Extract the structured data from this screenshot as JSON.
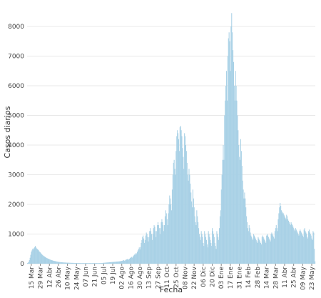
{
  "chart_data": {
    "type": "bar",
    "x_label": "Fecha",
    "y_label": "Casos diarios",
    "color": "#a9d1e6",
    "grid": true,
    "ylim": [
      0,
      8650
    ],
    "yticks": [
      0,
      1000,
      2000,
      3000,
      4000,
      5000,
      6000,
      7000,
      8000
    ],
    "categories": [
      null,
      null,
      null,
      null,
      null,
      null,
      "15 Mar",
      null,
      null,
      null,
      null,
      null,
      null,
      null,
      null,
      null,
      null,
      null,
      null,
      null,
      "29 Mar",
      null,
      null,
      null,
      null,
      null,
      null,
      null,
      null,
      null,
      null,
      null,
      null,
      null,
      "12 Abr",
      null,
      null,
      null,
      null,
      null,
      null,
      null,
      null,
      null,
      null,
      null,
      null,
      null,
      "26 Abr",
      null,
      null,
      null,
      null,
      null,
      null,
      null,
      null,
      null,
      null,
      null,
      null,
      null,
      "10 May",
      null,
      null,
      null,
      null,
      null,
      null,
      null,
      null,
      null,
      null,
      null,
      null,
      null,
      "24 May",
      null,
      null,
      null,
      null,
      null,
      null,
      null,
      null,
      null,
      null,
      null,
      null,
      null,
      "07 Jun",
      null,
      null,
      null,
      null,
      null,
      null,
      null,
      null,
      null,
      null,
      null,
      null,
      null,
      "21 Jun",
      null,
      null,
      null,
      null,
      null,
      null,
      null,
      null,
      null,
      null,
      null,
      null,
      null,
      "05 Jul",
      null,
      null,
      null,
      null,
      null,
      null,
      null,
      null,
      null,
      null,
      null,
      null,
      null,
      "19 Jul",
      null,
      null,
      null,
      null,
      null,
      null,
      null,
      null,
      null,
      null,
      null,
      null,
      null,
      "02 Ago",
      null,
      null,
      null,
      null,
      null,
      null,
      null,
      null,
      null,
      null,
      null,
      null,
      null,
      "16 Ago",
      null,
      null,
      null,
      null,
      null,
      null,
      null,
      null,
      null,
      null,
      null,
      null,
      null,
      "30 Ago",
      null,
      null,
      null,
      null,
      null,
      null,
      null,
      null,
      null,
      null,
      null,
      null,
      null,
      "13 Sep",
      null,
      null,
      null,
      null,
      null,
      null,
      null,
      null,
      null,
      null,
      null,
      null,
      null,
      "27 Sep",
      null,
      null,
      null,
      null,
      null,
      null,
      null,
      null,
      null,
      null,
      null,
      null,
      null,
      "11 Oct",
      null,
      null,
      null,
      null,
      null,
      null,
      null,
      null,
      null,
      null,
      null,
      null,
      null,
      "25 Oct",
      null,
      null,
      null,
      null,
      null,
      null,
      null,
      null,
      null,
      null,
      null,
      null,
      null,
      "08 Nov",
      null,
      null,
      null,
      null,
      null,
      null,
      null,
      null,
      null,
      null,
      null,
      null,
      null,
      "22 Nov",
      null,
      null,
      null,
      null,
      null,
      null,
      null,
      null,
      null,
      null,
      null,
      null,
      null,
      "06 Dic",
      null,
      null,
      null,
      null,
      null,
      null,
      null,
      null,
      null,
      null,
      null,
      null,
      null,
      "20 Dic",
      null,
      null,
      null,
      null,
      null,
      null,
      null,
      null,
      null,
      null,
      null,
      null,
      null,
      "03 Ene",
      null,
      null,
      null,
      null,
      null,
      null,
      null,
      null,
      null,
      null,
      null,
      null,
      null,
      "17 Ene",
      null,
      null,
      null,
      null,
      null,
      null,
      null,
      null,
      null,
      null,
      null,
      null,
      null,
      "31 Ene",
      null,
      null,
      null,
      null,
      null,
      null,
      null,
      null,
      null,
      null,
      null,
      null,
      null,
      "14 Feb",
      null,
      null,
      null,
      null,
      null,
      null,
      null,
      null,
      null,
      null,
      null,
      null,
      null,
      "28 Feb",
      null,
      null,
      null,
      null,
      null,
      null,
      null,
      null,
      null,
      null,
      null,
      null,
      null,
      "14 Mar",
      null,
      null,
      null,
      null,
      null,
      null,
      null,
      null,
      null,
      null,
      null,
      null,
      null,
      "28 Mar",
      null,
      null,
      null,
      null,
      null,
      null,
      null,
      null,
      null,
      null,
      null,
      null,
      null,
      "11 Abr",
      null,
      null,
      null,
      null,
      null,
      null,
      null,
      null,
      null,
      null,
      null,
      null,
      null,
      "25 Abr",
      null,
      null,
      null,
      null,
      null,
      null,
      null,
      null,
      null,
      null,
      null,
      null,
      null,
      "09 May",
      null,
      null,
      null,
      null,
      null,
      null,
      null,
      null,
      null,
      null,
      null,
      null,
      null,
      "23 May",
      null,
      null,
      null,
      null,
      null
    ],
    "values": [
      20,
      40,
      60,
      120,
      200,
      300,
      400,
      450,
      500,
      520,
      480,
      550,
      600,
      560,
      520,
      500,
      480,
      460,
      420,
      400,
      380,
      350,
      320,
      300,
      280,
      260,
      250,
      230,
      220,
      200,
      190,
      180,
      170,
      160,
      150,
      140,
      130,
      120,
      115,
      110,
      100,
      95,
      90,
      85,
      80,
      75,
      70,
      65,
      60,
      58,
      55,
      52,
      50,
      48,
      46,
      44,
      42,
      40,
      40,
      38,
      36,
      35,
      34,
      33,
      32,
      31,
      30,
      30,
      29,
      28,
      28,
      27,
      26,
      26,
      25,
      25,
      24,
      24,
      23,
      23,
      22,
      22,
      21,
      21,
      20,
      20,
      21,
      22,
      20,
      19,
      20,
      21,
      22,
      20,
      19,
      20,
      21,
      22,
      20,
      19,
      20,
      21,
      22,
      20,
      19,
      20,
      21,
      22,
      20,
      19,
      20,
      21,
      22,
      20,
      22,
      24,
      26,
      28,
      30,
      32,
      34,
      36,
      38,
      40,
      42,
      44,
      46,
      48,
      50,
      52,
      54,
      56,
      58,
      60,
      62,
      64,
      66,
      68,
      70,
      72,
      74,
      76,
      78,
      80,
      85,
      90,
      95,
      100,
      110,
      120,
      100,
      110,
      130,
      140,
      150,
      160,
      130,
      150,
      170,
      190,
      210,
      230,
      200,
      230,
      260,
      290,
      320,
      350,
      300,
      350,
      400,
      450,
      500,
      550,
      480,
      560,
      700,
      800,
      900,
      950,
      850,
      700,
      800,
      950,
      1050,
      1000,
      900,
      750,
      900,
      1100,
      1200,
      1100,
      1000,
      800,
      1000,
      1200,
      1300,
      1250,
      1100,
      900,
      1100,
      1300,
      1400,
      1300,
      1200,
      1000,
      1200,
      1400,
      1500,
      1400,
      1300,
      1100,
      1300,
      1600,
      1800,
      1700,
      1500,
      1300,
      1700,
      2000,
      2300,
      2200,
      2000,
      1800,
      2500,
      3000,
      3400,
      3500,
      3200,
      3000,
      3800,
      4300,
      4500,
      4400,
      4200,
      3800,
      4600,
      4650,
      4500,
      4300,
      3900,
      3600,
      3200,
      4400,
      4300,
      4000,
      3800,
      3400,
      3000,
      2800,
      3200,
      3000,
      2700,
      2400,
      2100,
      1900,
      2500,
      2200,
      1900,
      1600,
      1400,
      1300,
      1800,
      1600,
      1400,
      1200,
      1000,
      900,
      800,
      1100,
      1000,
      900,
      700,
      600,
      1100,
      1000,
      900,
      800,
      650,
      550,
      1100,
      1000,
      900,
      800,
      700,
      600,
      1200,
      1100,
      1000,
      900,
      700,
      600,
      500,
      1100,
      1000,
      900,
      800,
      1200,
      1600,
      1800,
      2500,
      3000,
      3500,
      4000,
      3500,
      5000,
      5500,
      6000,
      6500,
      5500,
      7000,
      7600,
      7800,
      7500,
      6500,
      8000,
      8450,
      7800,
      7200,
      6800,
      6000,
      5500,
      6500,
      6000,
      5500,
      5000,
      4500,
      4000,
      3600,
      3500,
      4200,
      3800,
      3300,
      2800,
      2500,
      2200,
      2400,
      2200,
      1900,
      1600,
      1400,
      1200,
      1100,
      1300,
      1200,
      1050,
      950,
      900,
      850,
      800,
      1000,
      950,
      900,
      850,
      800,
      750,
      700,
      900,
      850,
      800,
      750,
      700,
      650,
      900,
      950,
      900,
      850,
      800,
      750,
      700,
      950,
      1000,
      950,
      900,
      850,
      800,
      750,
      1000,
      1050,
      1000,
      950,
      900,
      850,
      1100,
      1200,
      1300,
      1200,
      1100,
      1500,
      1700,
      1900,
      2050,
      1950,
      1800,
      1700,
      1750,
      1700,
      1650,
      1600,
      1550,
      1500,
      1650,
      1600,
      1500,
      1450,
      1400,
      1350,
      1300,
      1400,
      1350,
      1300,
      1250,
      1200,
      1150,
      1100,
      1200,
      1150,
      1100,
      1050,
      1000,
      950,
      1100,
      1150,
      1100,
      1050,
      1000,
      950,
      900,
      1150,
      1200,
      1100,
      1050,
      1000,
      900,
      850,
      1100,
      1150,
      1050,
      1000,
      950,
      850,
      800,
      1100,
      1050,
      500,
      80
    ]
  }
}
